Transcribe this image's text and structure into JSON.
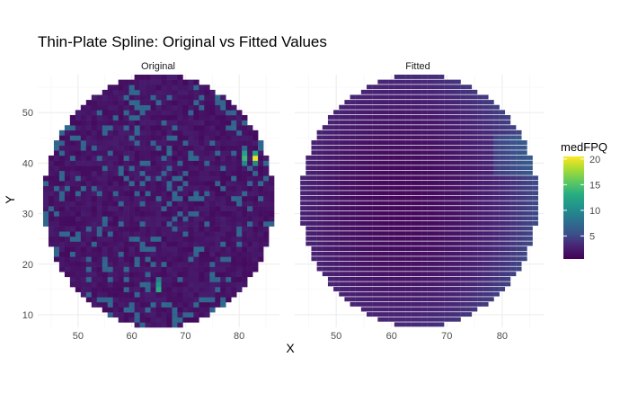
{
  "chart_data": {
    "type": "heatmap",
    "title": "Thin-Plate Spline: Original vs Fitted Values",
    "xlabel": "X",
    "ylabel": "Y",
    "panels": [
      {
        "label": "Original"
      },
      {
        "label": "Fitted"
      }
    ],
    "xlim": [
      42.5,
      87.5
    ],
    "ylim": [
      7.5,
      57.5
    ],
    "xticks": [
      50,
      60,
      70,
      80
    ],
    "yticks": [
      10,
      20,
      30,
      40,
      50
    ],
    "legend": {
      "title": "medFPQ",
      "position": "right",
      "ticks": [
        5,
        10,
        15,
        20
      ],
      "range": [
        0.5,
        20.5
      ],
      "colormap": "viridis"
    },
    "grid": true,
    "domain": {
      "center_x": 65,
      "center_y": 32.5,
      "radius_x": 21.5,
      "radius_y": 25
    },
    "original": {
      "typical_value": 2.0,
      "hotspots": [
        {
          "x": 83,
          "y": 41,
          "value": 20
        },
        {
          "x": 81,
          "y": 41,
          "value": 14
        },
        {
          "x": 81,
          "y": 42,
          "value": 12
        },
        {
          "x": 83,
          "y": 42,
          "value": 12
        },
        {
          "x": 81,
          "y": 40,
          "value": 10
        },
        {
          "x": 83,
          "y": 40,
          "value": 10
        },
        {
          "x": 65,
          "y": 15,
          "value": 13
        },
        {
          "x": 65,
          "y": 16,
          "value": 11
        },
        {
          "x": 65,
          "y": 17,
          "value": 9
        },
        {
          "x": 67,
          "y": 42,
          "value": 8
        },
        {
          "x": 67,
          "y": 43,
          "value": 7
        }
      ]
    },
    "fitted": {
      "min_value": 0.8,
      "max_value": 4.0
    }
  }
}
